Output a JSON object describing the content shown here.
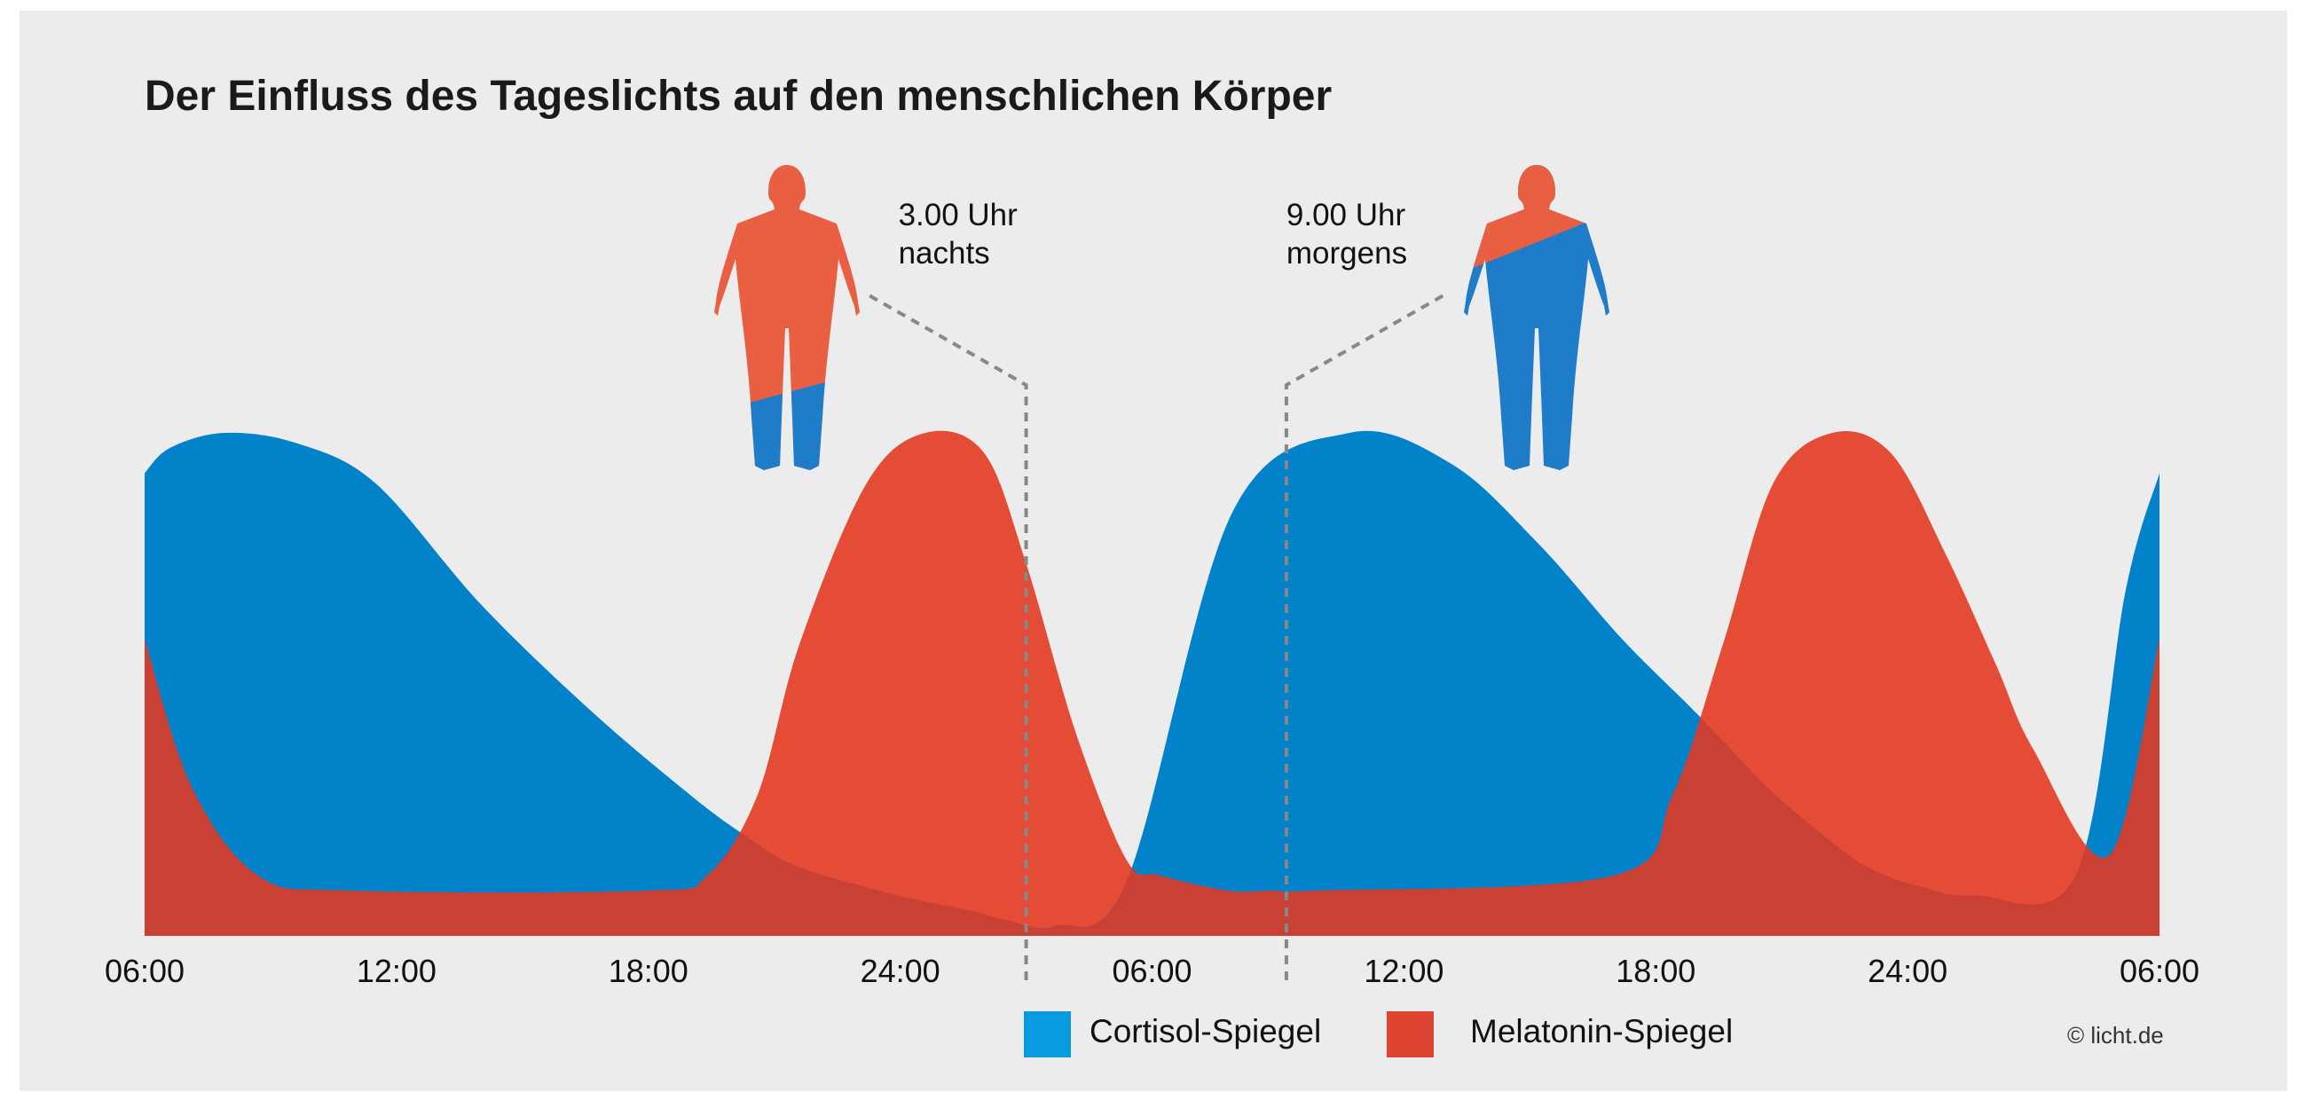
{
  "colors": {
    "background": "#ececec",
    "cortisol": "#0282c8",
    "melatonin": "#e54c35",
    "overlap": "#c94035",
    "legend_cortisol": "#089bdf",
    "legend_melatonin": "#dd4532",
    "figure_orange": "#e95f42",
    "figure_blue": "#1f7cc8",
    "dashed_line": "#888888"
  },
  "chart_data": {
    "type": "area",
    "title": "Der Einfluss des Tageslichts auf den menschlichen Körper",
    "xlabel": "",
    "ylabel": "",
    "y_units": "relative level (0 = baseline, 1 = peak)",
    "ylim": [
      0,
      1
    ],
    "x_ticks": [
      "06:00",
      "12:00",
      "18:00",
      "24:00",
      "06:00",
      "12:00",
      "18:00",
      "24:00",
      "06:00"
    ],
    "x_range_hours": [
      0,
      48
    ],
    "series": [
      {
        "name": "Cortisol-Spiegel",
        "color": "#0282c8",
        "hours": [
          0,
          0.6,
          1.9,
          3.6,
          5.5,
          8.0,
          10.6,
          13.0,
          14.3,
          15.5,
          17.5,
          18.5,
          19.7,
          20.6,
          21.7,
          23.4,
          25.9,
          28.7,
          31.1,
          33.2,
          35.2,
          37.0,
          38.6,
          39.7,
          40.6,
          41.2,
          42.2,
          43.6,
          46.0,
          47.2,
          48.0
        ],
        "values": [
          0.92,
          0.97,
          1.0,
          0.98,
          0.9,
          0.66,
          0.45,
          0.28,
          0.2,
          0.14,
          0.09,
          0.07,
          0.05,
          0.03,
          0.02,
          0.11,
          0.84,
          1.0,
          0.94,
          0.78,
          0.59,
          0.44,
          0.3,
          0.22,
          0.16,
          0.13,
          0.1,
          0.08,
          0.12,
          0.69,
          0.92
        ]
      },
      {
        "name": "Melatonin-Spiegel",
        "color": "#e54c35",
        "hours": [
          0,
          1.1,
          2.7,
          4.9,
          12.0,
          13.4,
          14.6,
          15.6,
          17.2,
          18.6,
          20.0,
          21.0,
          22.2,
          23.4,
          24.2,
          25.8,
          26.9,
          27.9,
          35.0,
          36.4,
          37.6,
          38.8,
          40.2,
          41.6,
          42.9,
          44.1,
          45.0,
          46.8,
          48.0
        ],
        "values": [
          0.59,
          0.3,
          0.12,
          0.09,
          0.09,
          0.12,
          0.28,
          0.58,
          0.9,
          1.0,
          0.96,
          0.74,
          0.4,
          0.15,
          0.12,
          0.09,
          0.09,
          0.09,
          0.12,
          0.28,
          0.58,
          0.9,
          1.0,
          0.96,
          0.76,
          0.54,
          0.37,
          0.16,
          0.59
        ]
      }
    ],
    "markers": [
      {
        "hour": 21,
        "label_line1": "3.00 Uhr",
        "label_line2": "nachts"
      },
      {
        "hour": 27.2,
        "label_line1": "9.00 Uhr",
        "label_line2": "morgens"
      }
    ],
    "legend": [
      "Cortisol-Spiegel",
      "Melatonin-Spiegel"
    ],
    "legend_position": "bottom-center"
  },
  "credit": "© licht.de",
  "figures": [
    {
      "name": "night-figure",
      "description": "mostly melatonin"
    },
    {
      "name": "morning-figure",
      "description": "mostly cortisol"
    }
  ]
}
